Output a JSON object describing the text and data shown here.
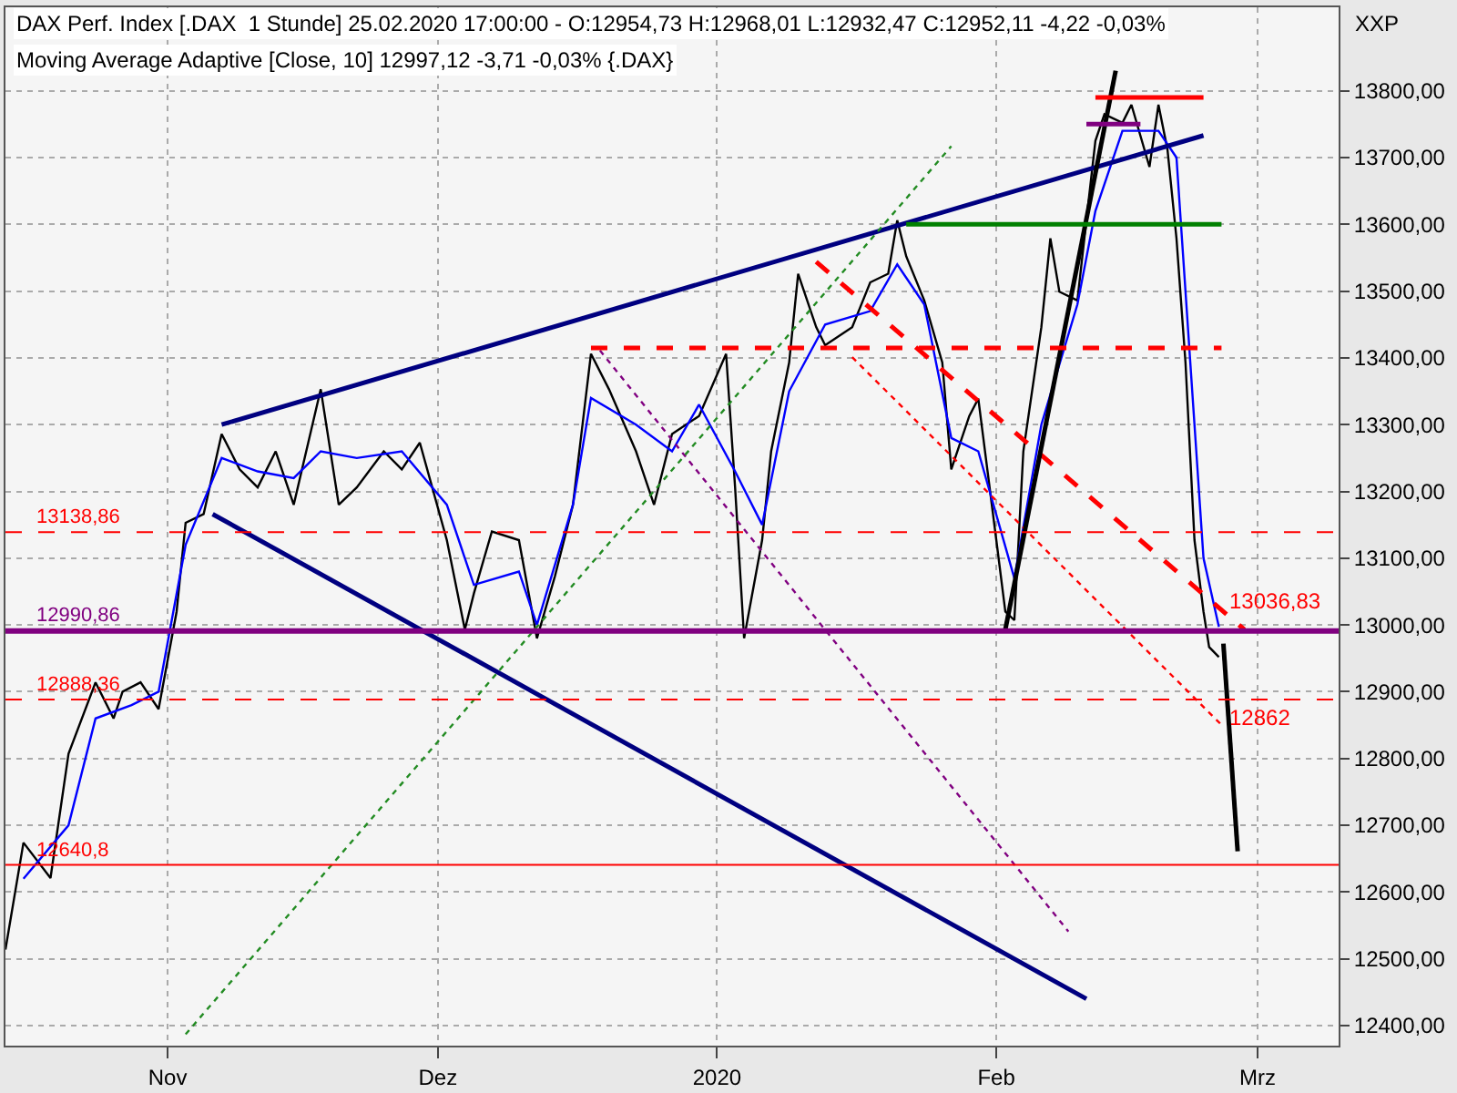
{
  "chart_data": {
    "type": "line",
    "title": "DAX Perf. Index [.DAX  1 Stunde] 25.02.2020 17:00:00 - O:12954,73 H:12968,01 L:12932,47 C:12952,11 -4,22 -0,03%",
    "subtitle": "Moving Average Adaptive [Close, 10] 12997,12 -3,71 -0,03% {.DAX}",
    "ylabel": "XXP",
    "xlim": [
      "2019-10-14",
      "2020-03-10"
    ],
    "xticks": [
      {
        "value": "2019-11-01",
        "label": "Nov"
      },
      {
        "value": "2019-12-01",
        "label": "Dez"
      },
      {
        "value": "2020-01-01",
        "label": "2020"
      },
      {
        "value": "2020-02-01",
        "label": "Feb"
      },
      {
        "value": "2020-03-01",
        "label": "Mrz"
      }
    ],
    "ylim": [
      12370,
      13925
    ],
    "yticks": [
      {
        "value": 12400,
        "label": "12400,00"
      },
      {
        "value": 12500,
        "label": "12500,00"
      },
      {
        "value": 12600,
        "label": "12600,00"
      },
      {
        "value": 12700,
        "label": "12700,00"
      },
      {
        "value": 12800,
        "label": "12800,00"
      },
      {
        "value": 12900,
        "label": "12900,00"
      },
      {
        "value": 13000,
        "label": "13000,00"
      },
      {
        "value": 13100,
        "label": "13100,00"
      },
      {
        "value": 13200,
        "label": "13200,00"
      },
      {
        "value": 13300,
        "label": "13300,00"
      },
      {
        "value": 13400,
        "label": "13400,00"
      },
      {
        "value": 13500,
        "label": "13500,00"
      },
      {
        "value": 13600,
        "label": "13600,00"
      },
      {
        "value": 13700,
        "label": "13700,00"
      },
      {
        "value": 13800,
        "label": "13800,00"
      }
    ],
    "grid": true,
    "series": [
      {
        "color": "#000000",
        "line_style": "solid",
        "x": [
          "2019-10-14",
          "2019-10-16",
          "2019-10-19",
          "2019-10-21",
          "2019-10-24",
          "2019-10-26",
          "2019-10-27",
          "2019-10-29",
          "2019-10-31",
          "2019-11-02",
          "2019-11-03",
          "2019-11-05",
          "2019-11-07",
          "2019-11-09",
          "2019-11-11",
          "2019-11-13",
          "2019-11-15",
          "2019-11-18",
          "2019-11-20",
          "2019-11-22",
          "2019-11-25",
          "2019-11-27",
          "2019-11-29",
          "2019-12-02",
          "2019-12-04",
          "2019-12-05",
          "2019-12-07",
          "2019-12-10",
          "2019-12-12",
          "2019-12-14",
          "2019-12-16",
          "2019-12-18",
          "2019-12-20",
          "2019-12-23",
          "2019-12-25",
          "2019-12-27",
          "2019-12-30",
          "2020-01-02",
          "2020-01-03",
          "2020-01-04",
          "2020-01-06",
          "2020-01-07",
          "2020-01-09",
          "2020-01-10",
          "2020-01-12",
          "2020-01-13",
          "2020-01-16",
          "2020-01-18",
          "2020-01-20",
          "2020-01-21",
          "2020-01-22",
          "2020-01-24",
          "2020-01-26",
          "2020-01-27",
          "2020-01-29",
          "2020-01-30",
          "2020-02-01",
          "2020-02-02",
          "2020-02-03",
          "2020-02-04",
          "2020-02-06",
          "2020-02-07",
          "2020-02-08",
          "2020-02-10",
          "2020-02-11",
          "2020-02-12",
          "2020-02-13",
          "2020-02-15",
          "2020-02-16",
          "2020-02-18",
          "2020-02-19",
          "2020-02-20",
          "2020-02-21",
          "2020-02-22",
          "2020-02-23",
          "2020-02-24",
          "2020-02-24T15:00",
          "2020-02-25T17:00"
        ],
        "values": [
          12514,
          12674,
          12621,
          12807,
          12914,
          12860,
          12900,
          12914,
          12874,
          13020,
          13153,
          13166,
          13286,
          13233,
          13206,
          13260,
          13180,
          13353,
          13180,
          13206,
          13260,
          13233,
          13273,
          13127,
          12993,
          13047,
          13140,
          13127,
          12980,
          13073,
          13180,
          13406,
          13353,
          13260,
          13180,
          13286,
          13313,
          13406,
          13206,
          12980,
          13127,
          13260,
          13393,
          13526,
          13446,
          13419,
          13446,
          13513,
          13526,
          13606,
          13552,
          13486,
          13393,
          13233,
          13313,
          13339,
          13127,
          13020,
          13007,
          13260,
          13446,
          13579,
          13499,
          13486,
          13606,
          13725,
          13765,
          13752,
          13779,
          13686,
          13779,
          13712,
          13579,
          13393,
          13127,
          13020,
          12967,
          12952
        ]
      },
      {
        "color": "#0000ff",
        "line_style": "solid",
        "x": [
          "2019-10-16",
          "2019-10-21",
          "2019-10-24",
          "2019-10-28",
          "2019-10-31",
          "2019-11-03",
          "2019-11-07",
          "2019-11-11",
          "2019-11-15",
          "2019-11-18",
          "2019-11-22",
          "2019-11-27",
          "2019-12-02",
          "2019-12-05",
          "2019-12-10",
          "2019-12-12",
          "2019-12-16",
          "2019-12-18",
          "2019-12-23",
          "2019-12-27",
          "2019-12-30",
          "2020-01-03",
          "2020-01-06",
          "2020-01-09",
          "2020-01-13",
          "2020-01-18",
          "2020-01-21",
          "2020-01-24",
          "2020-01-27",
          "2020-01-30",
          "2020-02-03",
          "2020-02-06",
          "2020-02-10",
          "2020-02-12",
          "2020-02-15",
          "2020-02-19",
          "2020-02-21",
          "2020-02-23",
          "2020-02-24",
          "2020-02-25T17:00"
        ],
        "values": [
          12620,
          12700,
          12860,
          12880,
          12900,
          13120,
          13250,
          13230,
          13220,
          13260,
          13250,
          13260,
          13180,
          13060,
          13080,
          13000,
          13180,
          13340,
          13300,
          13260,
          13330,
          13230,
          13150,
          13350,
          13450,
          13470,
          13540,
          13480,
          13280,
          13260,
          13070,
          13300,
          13480,
          13620,
          13740,
          13740,
          13700,
          13300,
          13100,
          12997
        ]
      },
      {
        "color": "#000080",
        "line_style": "solid",
        "x": [
          "2019-11-07",
          "2020-02-24"
        ],
        "values": [
          13300,
          13733
        ]
      },
      {
        "color": "#000080",
        "line_style": "solid",
        "x": [
          "2019-11-06",
          "2020-02-11"
        ],
        "values": [
          13166,
          12440
        ]
      },
      {
        "color": "#ff0000",
        "line_style": "dashed",
        "x": [
          "2020-01-12",
          "2020-02-28T13:00"
        ],
        "values": [
          13544,
          12993
        ]
      },
      {
        "color": "#ff0000",
        "line_style": "dotted",
        "x": [
          "2020-01-16",
          "2020-02-26T06:00"
        ],
        "values": [
          13401,
          12847
        ]
      },
      {
        "color": "#800080",
        "line_style": "dotted",
        "x": [
          "2019-12-19",
          "2020-02-09"
        ],
        "values": [
          13411,
          12541
        ]
      },
      {
        "color": "#228b22",
        "line_style": "dotted",
        "x": [
          "2019-11-03",
          "2020-01-27"
        ],
        "values": [
          12387,
          13717
        ]
      },
      {
        "color": "#000000",
        "line_style": "solid",
        "x": [
          "2020-02-02",
          "2020-02-14T06:00"
        ],
        "values": [
          12993,
          13830
        ]
      },
      {
        "color": "#000000",
        "line_style": "solid",
        "x": [
          "2020-02-26T05:00",
          "2020-02-27T19:00"
        ],
        "values": [
          12972,
          12661
        ]
      },
      {
        "color": "#ff0000",
        "line_style": "dashed",
        "x": [
          "2019-12-18",
          "2020-02-26"
        ],
        "values": [
          13415,
          13415
        ]
      },
      {
        "color": "#008000",
        "line_style": "solid",
        "x": [
          "2020-01-22",
          "2020-02-26"
        ],
        "values": [
          13600,
          13600
        ]
      },
      {
        "color": "#ff0000",
        "line_style": "solid",
        "x": [
          "2020-02-12",
          "2020-02-24"
        ],
        "values": [
          13790,
          13790
        ]
      },
      {
        "color": "#800080",
        "line_style": "solid",
        "x": [
          "2020-02-11",
          "2020-02-17"
        ],
        "values": [
          13750,
          13750
        ]
      }
    ],
    "ref_lines": [
      {
        "axis": "y",
        "value": 13138.86,
        "label": "13138,86",
        "color": "#ff0000",
        "line_style": "dashed"
      },
      {
        "axis": "y",
        "value": 12990.86,
        "label": "12990,86",
        "color": "#800080",
        "line_style": "solid"
      },
      {
        "axis": "y",
        "value": 12888.36,
        "label": "12888,36",
        "color": "#ff0000",
        "line_style": "dashed"
      },
      {
        "axis": "y",
        "value": 12640.8,
        "label": "12640,8",
        "color": "#ff0000",
        "line_style": "solid"
      }
    ],
    "annotations": [
      {
        "text": "13036,83",
        "x": "2020-02-25T17:00",
        "y": 13036.83
      },
      {
        "text": "12862",
        "x": "2020-02-25T17:00",
        "y": 12862
      }
    ]
  }
}
